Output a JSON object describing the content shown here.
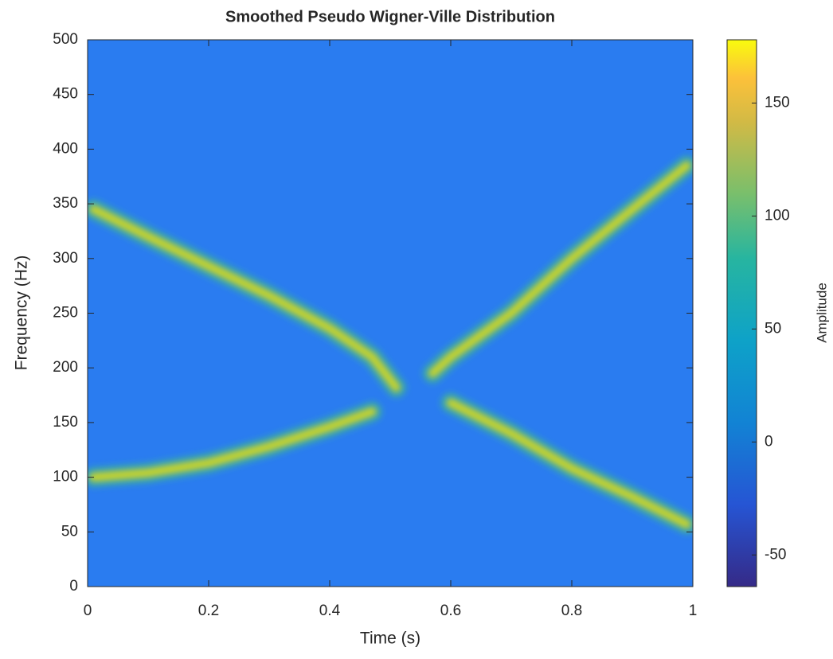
{
  "chart_data": {
    "type": "image",
    "title": "Smoothed Pseudo Wigner-Ville Distribution",
    "x_label": "Time (s)",
    "y_label": "Frequency (Hz)",
    "background_color": "#2a7cf0",
    "x": [
      0.01,
      0.1,
      0.2,
      0.3,
      0.4,
      0.47,
      0.51,
      0.57,
      0.6,
      0.7,
      0.8,
      0.9,
      0.99
    ],
    "series": [
      {
        "color": "#c9d42a",
        "values": [
          345,
          320,
          293,
          266,
          236,
          210,
          182,
          null,
          168,
          140,
          108,
          82,
          57
        ]
      },
      {
        "color": "#c9d42a",
        "values": [
          100,
          104,
          113,
          128,
          146,
          160,
          null,
          195,
          210,
          250,
          300,
          345,
          385
        ]
      }
    ],
    "xlim": [
      0,
      1
    ],
    "xticks": [
      0,
      0.2,
      0.4,
      0.6,
      0.8,
      1
    ],
    "ylim": [
      0,
      500
    ],
    "yticks": [
      0,
      50,
      100,
      150,
      200,
      250,
      300,
      350,
      400,
      450,
      500
    ],
    "colorbar": {
      "label": "Amplitude",
      "clim": [
        -64,
        178
      ],
      "ticks": [
        -50,
        0,
        50,
        100,
        150
      ]
    }
  }
}
